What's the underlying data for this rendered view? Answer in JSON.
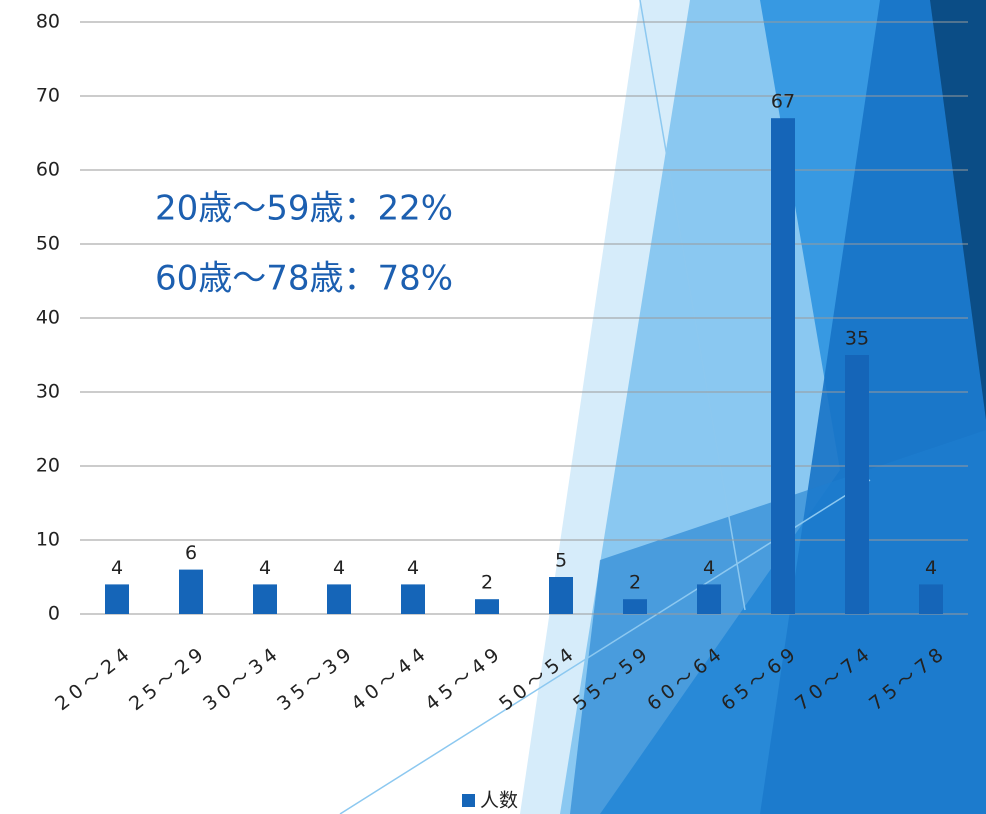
{
  "chart_data": {
    "type": "bar",
    "categories": [
      "20～24",
      "25～29",
      "30～34",
      "35～39",
      "40～44",
      "45～49",
      "50～54",
      "55～59",
      "60～64",
      "65～69",
      "70～74",
      "75～78"
    ],
    "series": [
      {
        "name": "人数",
        "color": "#1565b8",
        "values": [
          4,
          6,
          4,
          4,
          4,
          2,
          5,
          2,
          4,
          67,
          35,
          4
        ]
      }
    ],
    "ylim": [
      0,
      80
    ],
    "yticks": [
      0,
      10,
      20,
      30,
      40,
      50,
      60,
      70,
      80
    ],
    "grid": true,
    "annotations": [
      "20歳～59歳：22%",
      "60歳～78歳：78%"
    ],
    "legend": "bottom"
  }
}
